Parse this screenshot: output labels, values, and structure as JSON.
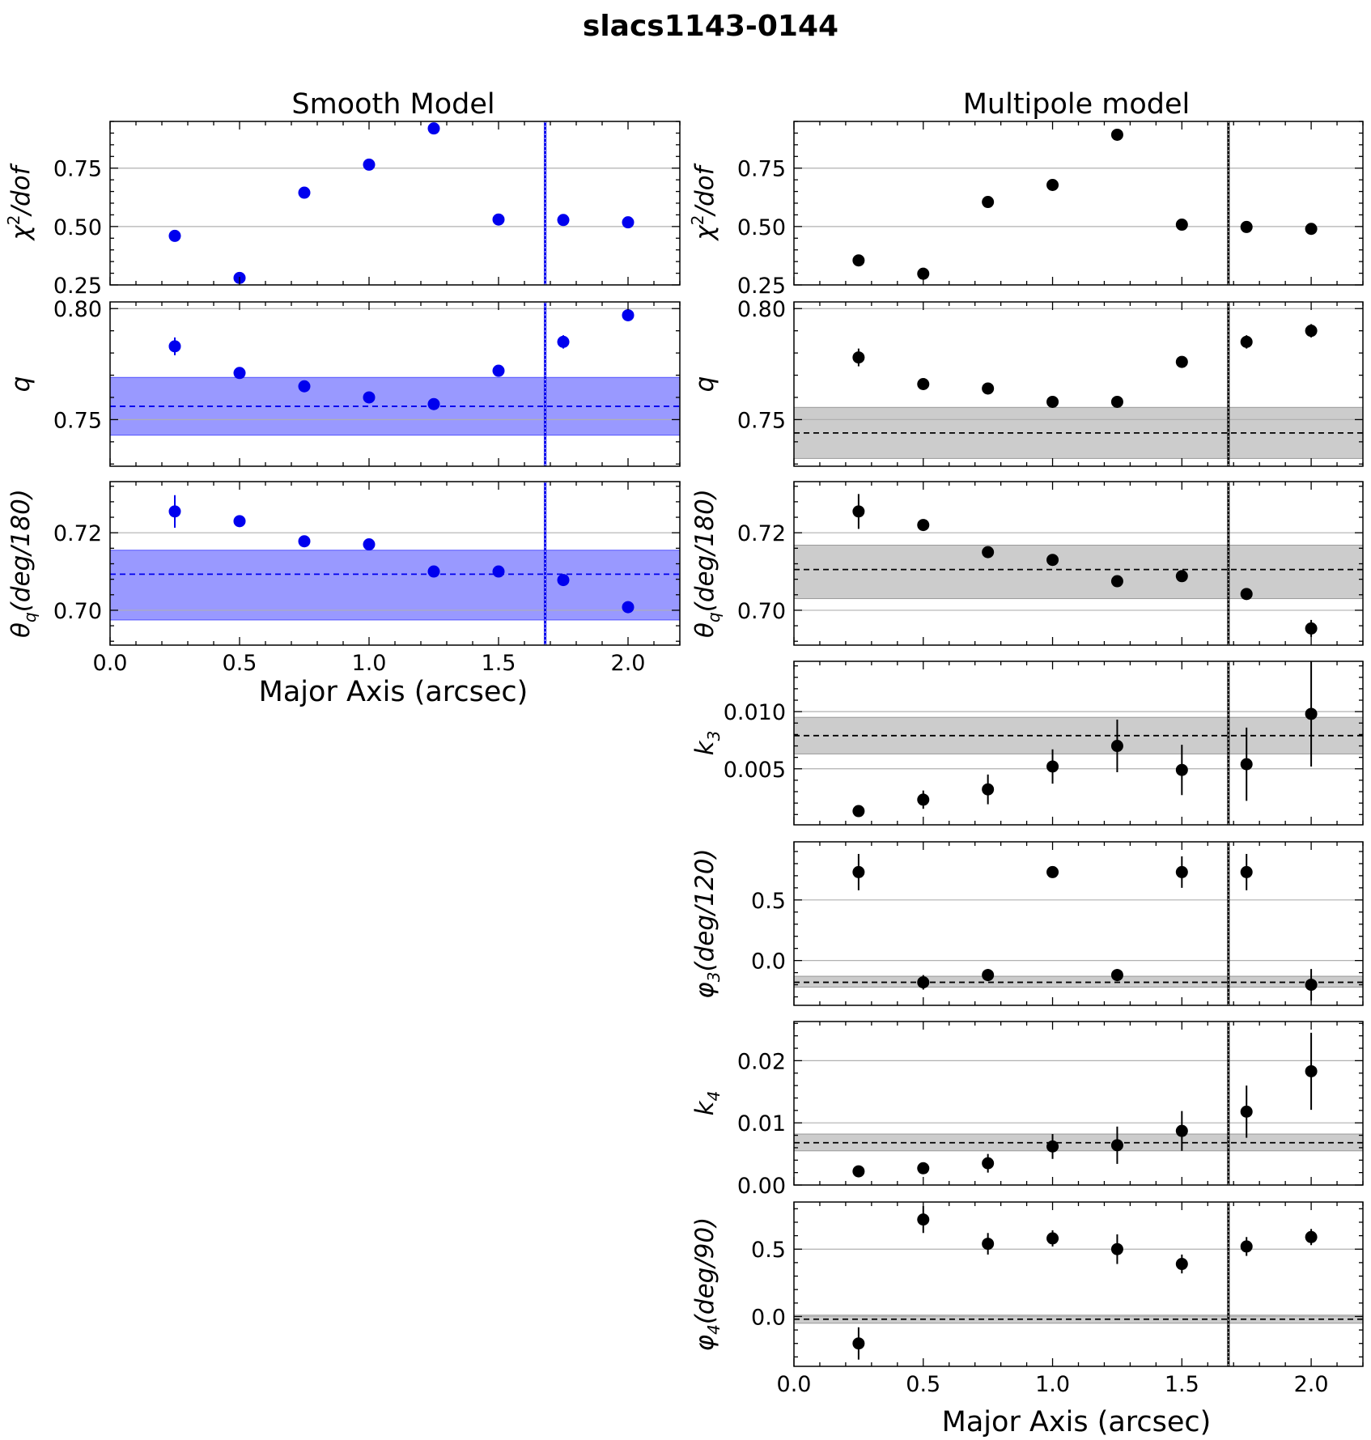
{
  "figure": {
    "title": "slacs1143-0144",
    "left_title": "Smooth Model",
    "right_title": "Multipole model",
    "xlabel": "Major Axis (arcsec)"
  },
  "colors": {
    "smooth": "#0000ee",
    "smooth_band": "#9999ff",
    "multipole": "#000000",
    "multipole_band": "#cccccc",
    "grid": "#b0b0b0"
  },
  "chart_data": [
    {
      "type": "scatter",
      "column": "left",
      "ylabel_main": "χ",
      "ylabel_html": "χ²/dof",
      "x": [
        0.25,
        0.5,
        0.75,
        1.0,
        1.25,
        1.5,
        1.75,
        2.0
      ],
      "y": [
        0.46,
        0.28,
        0.645,
        0.765,
        0.92,
        0.53,
        0.528,
        0.518
      ],
      "yerr": [
        0,
        0,
        0,
        0,
        0,
        0,
        0,
        0
      ],
      "xlim": [
        0,
        2.2
      ],
      "ylim": [
        0.25,
        0.95
      ],
      "yticks": [
        "0.25",
        "0.50",
        "0.75"
      ],
      "vline": 1.68,
      "hline": null,
      "band": null
    },
    {
      "type": "scatter",
      "column": "left",
      "ylabel_html": "q",
      "x": [
        0.25,
        0.5,
        0.75,
        1.0,
        1.25,
        1.5,
        1.75,
        2.0
      ],
      "y": [
        0.783,
        0.771,
        0.765,
        0.76,
        0.757,
        0.772,
        0.785,
        0.797
      ],
      "yerr": [
        0.004,
        0.001,
        0.001,
        0.001,
        0.001,
        0.001,
        0.003,
        0.002
      ],
      "xlim": [
        0,
        2.2
      ],
      "ylim": [
        0.729,
        0.803
      ],
      "yticks": [
        "0.75",
        "0.80"
      ],
      "vline": 1.68,
      "hline": 0.756,
      "band": [
        0.743,
        0.769
      ]
    },
    {
      "type": "scatter",
      "column": "left",
      "ylabel_html": "θq(deg/180)",
      "x": [
        0.25,
        0.5,
        0.75,
        1.0,
        1.25,
        1.5,
        1.75,
        2.0
      ],
      "y": [
        0.7255,
        0.723,
        0.7178,
        0.717,
        0.71,
        0.71,
        0.7078,
        0.7008
      ],
      "yerr": [
        0.0042,
        0.0012,
        0.0008,
        0.001,
        0.0008,
        0.0008,
        0.0015,
        0.0015
      ],
      "xlim": [
        0,
        2.2
      ],
      "ylim": [
        0.691,
        0.7332
      ],
      "yticks": [
        "0.70",
        "0.72"
      ],
      "vline": 1.68,
      "hline": 0.7093,
      "band": [
        0.6975,
        0.7155
      ]
    },
    {
      "type": "scatter",
      "column": "right",
      "ylabel_html": "χ²/dof",
      "x": [
        0.25,
        0.5,
        0.75,
        1.0,
        1.25,
        1.5,
        1.75,
        2.0
      ],
      "y": [
        0.355,
        0.298,
        0.605,
        0.678,
        0.893,
        0.508,
        0.498,
        0.49
      ],
      "yerr": [
        0,
        0,
        0,
        0,
        0,
        0,
        0,
        0
      ],
      "xlim": [
        0,
        2.2
      ],
      "ylim": [
        0.25,
        0.95
      ],
      "yticks": [
        "0.25",
        "0.50",
        "0.75"
      ],
      "vline": 1.68,
      "hline": null,
      "band": null
    },
    {
      "type": "scatter",
      "column": "right",
      "ylabel_html": "q",
      "x": [
        0.25,
        0.5,
        0.75,
        1.0,
        1.25,
        1.5,
        1.75,
        2.0
      ],
      "y": [
        0.778,
        0.766,
        0.764,
        0.758,
        0.758,
        0.776,
        0.785,
        0.79
      ],
      "yerr": [
        0.004,
        0.001,
        0.001,
        0.001,
        0.0015,
        0.001,
        0.003,
        0.003
      ],
      "xlim": [
        0,
        2.2
      ],
      "ylim": [
        0.729,
        0.803
      ],
      "yticks": [
        "0.75",
        "0.80"
      ],
      "vline": 1.68,
      "hline": 0.744,
      "band": [
        0.7325,
        0.7555
      ]
    },
    {
      "type": "scatter",
      "column": "right",
      "ylabel_html": "θq(deg/180)",
      "x": [
        0.25,
        0.5,
        0.75,
        1.0,
        1.25,
        1.5,
        1.75,
        2.0
      ],
      "y": [
        0.7255,
        0.722,
        0.715,
        0.713,
        0.7075,
        0.7088,
        0.7042,
        0.6953
      ],
      "yerr": [
        0.0045,
        0.0015,
        0.001,
        0.001,
        0.0012,
        0.001,
        0.0012,
        0.0022
      ],
      "xlim": [
        0,
        2.2
      ],
      "ylim": [
        0.691,
        0.7332
      ],
      "yticks": [
        "0.70",
        "0.72"
      ],
      "vline": 1.68,
      "hline": 0.7105,
      "band": [
        0.703,
        0.7168
      ]
    },
    {
      "type": "scatter",
      "column": "right",
      "ylabel_html": "k₃",
      "x": [
        0.25,
        0.5,
        0.75,
        1.0,
        1.25,
        1.5,
        1.75,
        2.0
      ],
      "y": [
        0.0013,
        0.0023,
        0.0032,
        0.0052,
        0.007,
        0.0049,
        0.0054,
        0.0098
      ],
      "yerr": [
        0.0005,
        0.0008,
        0.0013,
        0.0015,
        0.0023,
        0.0022,
        0.0032,
        0.0046
      ],
      "xlim": [
        0,
        2.2
      ],
      "ylim": [
        0.0001,
        0.0144
      ],
      "yticks": [
        "0.005",
        "0.010"
      ],
      "vline": 1.68,
      "hline": 0.0079,
      "band": [
        0.0063,
        0.0095
      ]
    },
    {
      "type": "scatter",
      "column": "right",
      "ylabel_html": "φ₃(deg/120)",
      "x": [
        0.25,
        0.5,
        0.75,
        1.0,
        1.25,
        1.5,
        1.75,
        2.0
      ],
      "y": [
        0.73,
        -0.18,
        -0.12,
        0.73,
        -0.12,
        0.73,
        0.73,
        -0.2
      ],
      "yerr": [
        0.15,
        0.06,
        0.05,
        0.04,
        0.05,
        0.13,
        0.15,
        0.13
      ],
      "xlim": [
        0,
        2.2
      ],
      "ylim": [
        -0.37,
        0.98
      ],
      "yticks": [
        "0.0",
        "0.5"
      ],
      "vline": 1.68,
      "hline": -0.18,
      "band": [
        -0.22,
        -0.13
      ]
    },
    {
      "type": "scatter",
      "column": "right",
      "ylabel_html": "k₄",
      "x": [
        0.25,
        0.5,
        0.75,
        1.0,
        1.25,
        1.5,
        1.75,
        2.0
      ],
      "y": [
        0.0022,
        0.0027,
        0.0035,
        0.0062,
        0.0064,
        0.0087,
        0.0118,
        0.0183
      ],
      "yerr": [
        0.0005,
        0.0008,
        0.0015,
        0.002,
        0.003,
        0.0032,
        0.0042,
        0.0062
      ],
      "xlim": [
        0,
        2.2
      ],
      "ylim": [
        0,
        0.0263
      ],
      "yticks": [
        "0.00",
        "0.01",
        "0.02"
      ],
      "vline": 1.68,
      "hline": 0.0068,
      "band": [
        0.0055,
        0.0082
      ]
    },
    {
      "type": "scatter",
      "column": "right",
      "ylabel_html": "φ₄(deg/90)",
      "x": [
        0.25,
        0.5,
        0.75,
        1.0,
        1.25,
        1.5,
        1.75,
        2.0
      ],
      "y": [
        -0.2,
        0.72,
        0.54,
        0.58,
        0.5,
        0.39,
        0.52,
        0.59
      ],
      "yerr": [
        0.12,
        0.1,
        0.08,
        0.06,
        0.11,
        0.07,
        0.07,
        0.06
      ],
      "xlim": [
        0,
        2.2
      ],
      "ylim": [
        -0.37,
        0.85
      ],
      "yticks": [
        "0.0",
        "0.5"
      ],
      "vline": 1.68,
      "hline": -0.02,
      "band": [
        -0.05,
        0.01
      ]
    }
  ],
  "xticks": [
    "0.0",
    "0.5",
    "1.0",
    "1.5",
    "2.0"
  ],
  "ylabels": [
    {
      "main": "χ",
      "sup": "2",
      "tail": "/dof"
    },
    {
      "main": "q"
    },
    {
      "main": "θ",
      "sub": "q",
      "tail": "(deg/180)"
    },
    {
      "main": "χ",
      "sup": "2",
      "tail": "/dof"
    },
    {
      "main": "q"
    },
    {
      "main": "θ",
      "sub": "q",
      "tail": "(deg/180)"
    },
    {
      "main": "k",
      "sub": "3"
    },
    {
      "main": "φ",
      "sub": "3",
      "tail": "(deg/120)"
    },
    {
      "main": "k",
      "sub": "4"
    },
    {
      "main": "φ",
      "sub": "4",
      "tail": "(deg/90)"
    }
  ]
}
